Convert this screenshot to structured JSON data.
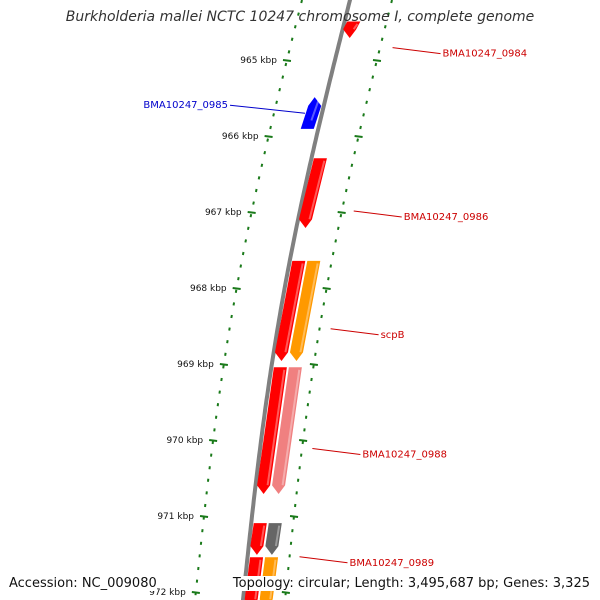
{
  "title": "Burkholderia mallei NCTC 10247 chromosome I, complete genome",
  "footer": {
    "accession": "Accession: NC_009080",
    "topology": "Topology: circular; Length: 3,495,687 bp; Genes: 3,325"
  },
  "colors": {
    "backbone": "#808080",
    "tick": "#1a7a1a",
    "gene_red": "#ff0000",
    "gene_blue": "#0000ff",
    "gene_orange": "#ff9900",
    "gene_pink": "#f08080",
    "gene_gray": "#666666",
    "label_red": "#cc0000",
    "label_blue": "#0000cc"
  },
  "chart_data": {
    "type": "genome-map",
    "view_range_kbp": [
      964.5,
      972.2
    ],
    "ticks": [
      {
        "kbp": 965,
        "label": "965 kbp"
      },
      {
        "kbp": 966,
        "label": "966 kbp"
      },
      {
        "kbp": 967,
        "label": "967 kbp"
      },
      {
        "kbp": 968,
        "label": "968 kbp"
      },
      {
        "kbp": 969,
        "label": "969 kbp"
      },
      {
        "kbp": 970,
        "label": "970 kbp"
      },
      {
        "kbp": 971,
        "label": "971 kbp"
      },
      {
        "kbp": 972,
        "label": "972 kbp"
      }
    ],
    "genes": [
      {
        "id": "gene-0984",
        "label": "BMA10247_0984",
        "start_kbp": 964.5,
        "end_kbp": 964.7,
        "strand": "+",
        "color": "red",
        "label_side": "right"
      },
      {
        "id": "gene-0985",
        "label": "BMA10247_0985",
        "start_kbp": 965.5,
        "end_kbp": 965.9,
        "strand": "-",
        "color": "blue",
        "label_side": "left"
      },
      {
        "id": "gene-0986",
        "label": "BMA10247_0986",
        "start_kbp": 966.3,
        "end_kbp": 967.2,
        "strand": "+",
        "color": "red",
        "label_side": "right"
      },
      {
        "id": "gene-0987a",
        "label": "",
        "start_kbp": 967.65,
        "end_kbp": 968.95,
        "strand": "+",
        "color": "red",
        "label_side": "right"
      },
      {
        "id": "gene-scpB",
        "label": "scpB",
        "start_kbp": 967.65,
        "end_kbp": 968.95,
        "strand": "+",
        "color": "orange",
        "label_side": "right"
      },
      {
        "id": "gene-0988a",
        "label": "",
        "start_kbp": 969.05,
        "end_kbp": 970.7,
        "strand": "+",
        "color": "red",
        "label_side": "right"
      },
      {
        "id": "gene-0988",
        "label": "BMA10247_0988",
        "start_kbp": 969.05,
        "end_kbp": 970.7,
        "strand": "+",
        "color": "pink",
        "label_side": "right"
      },
      {
        "id": "gene-0989a",
        "label": "",
        "start_kbp": 971.1,
        "end_kbp": 971.5,
        "strand": "+",
        "color": "red",
        "label_side": "right"
      },
      {
        "id": "gene-0989",
        "label": "BMA10247_0989",
        "start_kbp": 971.1,
        "end_kbp": 971.5,
        "strand": "+",
        "color": "gray",
        "label_side": "right"
      },
      {
        "id": "gene-0990a",
        "label": "",
        "start_kbp": 971.55,
        "end_kbp": 972.2,
        "strand": "+",
        "color": "red",
        "label_side": "right"
      },
      {
        "id": "gene-0990b",
        "label": "",
        "start_kbp": 971.55,
        "end_kbp": 972.2,
        "strand": "+",
        "color": "orange",
        "label_side": "right"
      }
    ]
  }
}
